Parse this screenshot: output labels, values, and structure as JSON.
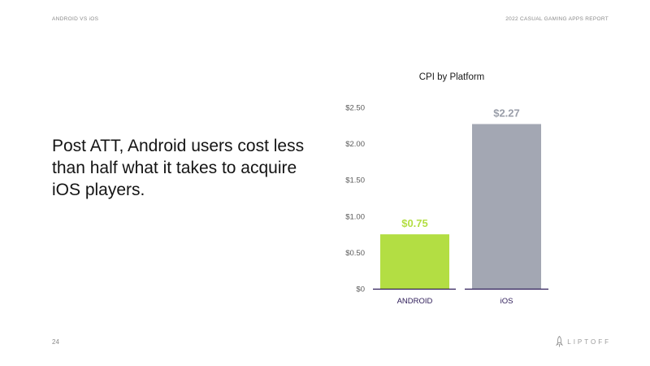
{
  "header": {
    "section": "ANDROID VS iOS",
    "report": "2022 CASUAL GAMING APPS REPORT"
  },
  "headline": "Post ATT, Android users cost less than half what it takes to acquire iOS players.",
  "footer": {
    "page_number": "24",
    "brand": "LIPTOFF"
  },
  "colors": {
    "android": "#b3de43",
    "ios": "#a3a7b3",
    "axis": "#2c1a57"
  },
  "chart_data": {
    "type": "bar",
    "title": "CPI by Platform",
    "categories": [
      "ANDROID",
      "iOS"
    ],
    "values": [
      0.75,
      2.27
    ],
    "data_labels": [
      "$0.75",
      "$2.27"
    ],
    "yticks": [
      0,
      0.5,
      1.0,
      1.5,
      2.0,
      2.5
    ],
    "ytick_labels": [
      "$0",
      "$0.50",
      "$1.00",
      "$1.50",
      "$2.00",
      "$2.50"
    ],
    "ylim": [
      0,
      2.5
    ],
    "xlabel": "",
    "ylabel": "",
    "grid": false,
    "legend": false
  }
}
